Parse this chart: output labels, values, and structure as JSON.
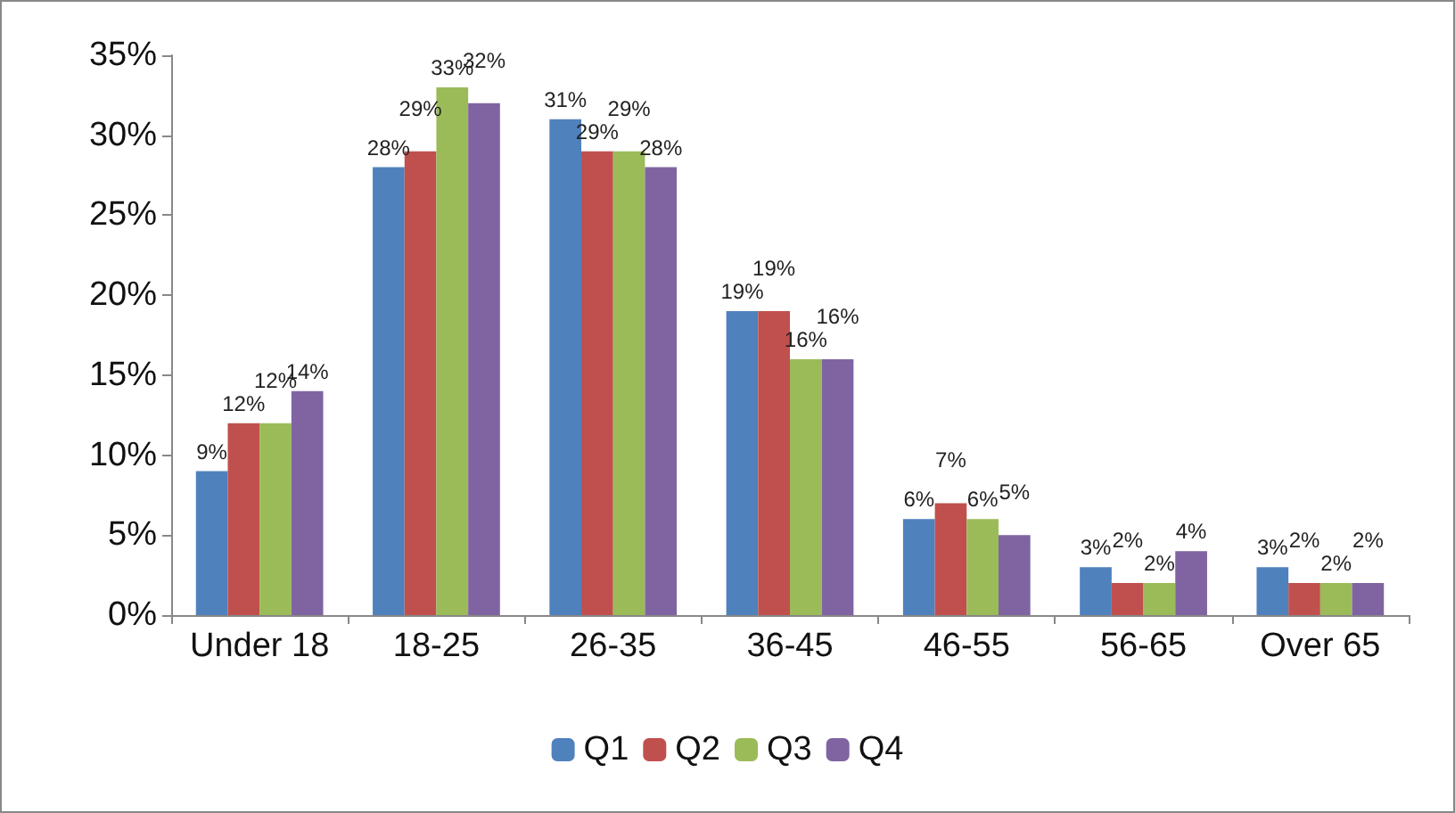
{
  "chart_data": {
    "type": "bar",
    "categories": [
      "Under 18",
      "18-25",
      "26-35",
      "36-45",
      "46-55",
      "56-65",
      "Over 65"
    ],
    "series": [
      {
        "name": "Q1",
        "color": "#4f81bd",
        "values": [
          9,
          28,
          31,
          19,
          6,
          3,
          3
        ],
        "value_labels": [
          "9%",
          "28%",
          "31%",
          "19%",
          "6%",
          "3%",
          "3%"
        ]
      },
      {
        "name": "Q2",
        "color": "#c0504d",
        "values": [
          12,
          29,
          29,
          19,
          7,
          2,
          2
        ],
        "value_labels": [
          "12%",
          "29%",
          "29%",
          "19%",
          "7%",
          "2%",
          "2%"
        ]
      },
      {
        "name": "Q3",
        "color": "#9bbb59",
        "values": [
          12,
          33,
          29,
          16,
          6,
          2,
          2
        ],
        "value_labels": [
          "12%",
          "33%",
          "29%",
          "16%",
          "6%",
          "2%",
          "2%"
        ]
      },
      {
        "name": "Q4",
        "color": "#8064a2",
        "values": [
          14,
          32,
          28,
          16,
          5,
          4,
          2
        ],
        "value_labels": [
          "14%",
          "32%",
          "28%",
          "16%",
          "5%",
          "4%",
          "2%"
        ]
      }
    ],
    "ylim": [
      0,
      35
    ],
    "yticks": [
      {
        "value": 0,
        "label": "0%"
      },
      {
        "value": 5,
        "label": "5%"
      },
      {
        "value": 10,
        "label": "10%"
      },
      {
        "value": 15,
        "label": "15%"
      },
      {
        "value": 20,
        "label": "20%"
      },
      {
        "value": 25,
        "label": "25%"
      },
      {
        "value": 30,
        "label": "30%"
      },
      {
        "value": 35,
        "label": "35%"
      }
    ],
    "grid": false,
    "legend": "bottom"
  }
}
